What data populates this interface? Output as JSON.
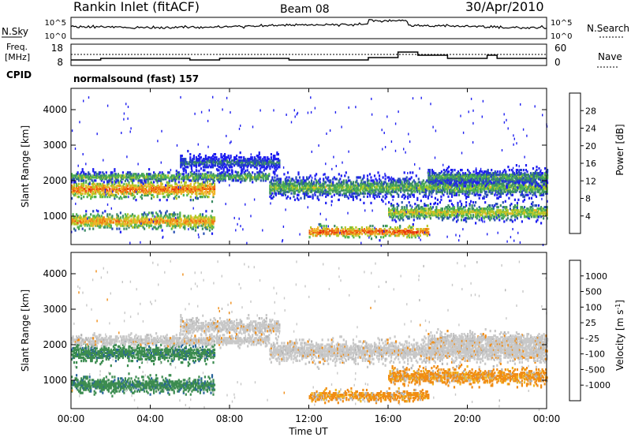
{
  "header": {
    "station": "Rankin Inlet (fitACF)",
    "beam": "Beam 08",
    "date": "30/Apr/2010"
  },
  "noise_panel": {
    "left_label": "N.Sky",
    "left_ticks": [
      "10^5",
      "10^0"
    ],
    "right_label": "N.Search",
    "right_ticks": [
      "10^5",
      "10^0"
    ]
  },
  "freq_panel": {
    "left_label_1": "Freq.",
    "left_label_2": "[MHz]",
    "left_ticks": [
      "18",
      "8"
    ],
    "right_label": "Nave",
    "right_ticks": [
      "60",
      "0"
    ]
  },
  "cpid": {
    "label": "CPID",
    "value": "normalsound (fast) 157"
  },
  "x_axis": {
    "label": "Time UT",
    "ticks": [
      "00:00",
      "04:00",
      "08:00",
      "12:00",
      "16:00",
      "20:00",
      "00:00"
    ]
  },
  "colors": {
    "power": [
      "#1e1ef0",
      "#2850b4",
      "#3c8c64",
      "#50b450",
      "#b4c828",
      "#f0b428",
      "#f07814",
      "#e63c14",
      "#e60a0a"
    ],
    "velocity": [
      "#e60a0a",
      "#f05014",
      "#f08c14",
      "#f0b41e",
      "#c8c8c8",
      "#b4b4b4",
      "#50c850",
      "#3c8c50",
      "#28649a",
      "#1e3cc8"
    ]
  },
  "chart_data": [
    {
      "type": "heatmap",
      "ylabel": "Slant Range [km]",
      "xlabel": "",
      "xlim": [
        0,
        24
      ],
      "ylim": [
        200,
        4600
      ],
      "yticks": [
        "1000",
        "2000",
        "3000",
        "4000"
      ],
      "colorbar_label": "Power [dB]",
      "colorbar_ticks": [
        "4",
        "8",
        "12",
        "16",
        "20",
        "24",
        "28"
      ],
      "colorbar_range": [
        0,
        32
      ]
    },
    {
      "type": "heatmap",
      "ylabel": "Slant Range [km]",
      "xlabel": "Time UT",
      "xlim": [
        0,
        24
      ],
      "ylim": [
        200,
        4600
      ],
      "yticks": [
        "1000",
        "2000",
        "3000",
        "4000"
      ],
      "colorbar_label": "Velocity [m s^-1]",
      "colorbar_ticks": [
        "1000",
        "500",
        "100",
        "25",
        "-25",
        "-100",
        "-500",
        "-1000"
      ]
    }
  ]
}
